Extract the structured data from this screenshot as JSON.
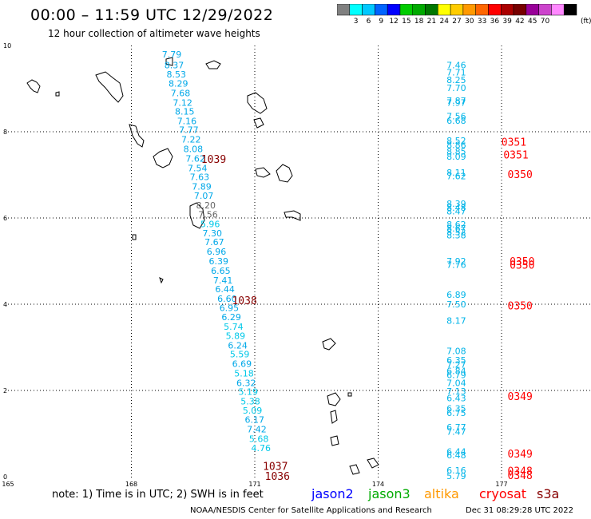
{
  "header": {
    "title": "00:00 – 11:59 UTC 12/29/2022",
    "subtitle": "12 hour collection of altimeter wave heights"
  },
  "legend": {
    "colors": [
      "#808080",
      "#00ffff",
      "#00c8ff",
      "#0064ff",
      "#0000ff",
      "#00cc00",
      "#00aa00",
      "#007700",
      "#ffff00",
      "#ffcc00",
      "#ff9900",
      "#ff6600",
      "#ff0000",
      "#aa0000",
      "#770000",
      "#990099",
      "#cc44cc",
      "#ff88ff",
      "#000000"
    ],
    "labels": [
      "3",
      "6",
      "9",
      "12",
      "15",
      "18",
      "21",
      "24",
      "27",
      "30",
      "33",
      "36",
      "39",
      "42",
      "45",
      "70"
    ],
    "unit": "(ft)"
  },
  "map": {
    "lon_ticks": [
      "165",
      "168",
      "171",
      "174",
      "177"
    ],
    "lat_ticks": [
      "0",
      "2",
      "4",
      "6",
      "8",
      "10"
    ],
    "track_west": [
      {
        "v": "7.79",
        "lat": 9.8
      },
      {
        "v": "8.37",
        "lat": 9.55
      },
      {
        "v": "8.53",
        "lat": 9.33
      },
      {
        "v": "8.29",
        "lat": 9.12
      },
      {
        "v": "7.68",
        "lat": 8.9
      },
      {
        "v": "7.12",
        "lat": 8.68
      },
      {
        "v": "8.15",
        "lat": 8.47
      },
      {
        "v": "7.16",
        "lat": 8.25
      },
      {
        "v": "7.77",
        "lat": 8.05
      },
      {
        "v": "7.22",
        "lat": 7.82
      },
      {
        "v": "8.08",
        "lat": 7.6
      },
      {
        "v": "7.62",
        "lat": 7.38
      },
      {
        "v": "7.54",
        "lat": 7.16
      },
      {
        "v": "7.63",
        "lat": 6.95
      },
      {
        "v": "7.89",
        "lat": 6.73
      },
      {
        "v": "7.07",
        "lat": 6.52
      },
      {
        "v": "8.20",
        "lat": 6.3
      },
      {
        "v": "7.56",
        "lat": 6.08
      },
      {
        "v": "5.96",
        "lat": 5.86
      },
      {
        "v": "7.30",
        "lat": 5.65
      },
      {
        "v": "7.67",
        "lat": 5.44
      },
      {
        "v": "6.96",
        "lat": 5.22
      },
      {
        "v": "6.39",
        "lat": 5.0
      },
      {
        "v": "6.65",
        "lat": 4.78
      },
      {
        "v": "7.41",
        "lat": 4.56
      },
      {
        "v": "6.44",
        "lat": 4.35
      },
      {
        "v": "6.60",
        "lat": 4.13
      },
      {
        "v": "6.95",
        "lat": 3.92
      },
      {
        "v": "6.29",
        "lat": 3.7
      },
      {
        "v": "5.74",
        "lat": 3.48
      },
      {
        "v": "5.89",
        "lat": 3.27
      },
      {
        "v": "6.24",
        "lat": 3.05
      },
      {
        "v": "5.59",
        "lat": 2.84
      },
      {
        "v": "6.69",
        "lat": 2.62
      },
      {
        "v": "5.18",
        "lat": 2.4
      },
      {
        "v": "6.32",
        "lat": 2.18
      },
      {
        "v": "5.19",
        "lat": 1.97
      },
      {
        "v": "5.38",
        "lat": 1.75
      },
      {
        "v": "5.09",
        "lat": 1.54
      },
      {
        "v": "6.17",
        "lat": 1.32
      },
      {
        "v": "7.42",
        "lat": 1.1
      },
      {
        "v": "5.68",
        "lat": 0.88
      },
      {
        "v": "4.76",
        "lat": 0.67
      }
    ],
    "track_east": [
      {
        "v": "7.46",
        "lat": 9.55
      },
      {
        "v": "7.71",
        "lat": 9.38
      },
      {
        "v": "8.25",
        "lat": 9.2
      },
      {
        "v": "7.70",
        "lat": 9.02
      },
      {
        "v": "7.87",
        "lat": 8.72
      },
      {
        "v": "7.97",
        "lat": 8.68
      },
      {
        "v": "7.56",
        "lat": 8.36
      },
      {
        "v": "6.68",
        "lat": 8.26
      },
      {
        "v": "8.52",
        "lat": 7.8
      },
      {
        "v": "8.86",
        "lat": 7.69
      },
      {
        "v": "8.85",
        "lat": 7.55
      },
      {
        "v": "8.09",
        "lat": 7.43
      },
      {
        "v": "8.11",
        "lat": 7.06
      },
      {
        "v": "7.62",
        "lat": 6.97
      },
      {
        "v": "8.39",
        "lat": 6.33
      },
      {
        "v": "8.48",
        "lat": 6.24
      },
      {
        "v": "8.47",
        "lat": 6.16
      },
      {
        "v": "8.62",
        "lat": 5.85
      },
      {
        "v": "8.67",
        "lat": 5.76
      },
      {
        "v": "8.52",
        "lat": 5.68
      },
      {
        "v": "8.38",
        "lat": 5.6
      },
      {
        "v": "7.92",
        "lat": 5.0
      },
      {
        "v": "7.76",
        "lat": 4.92
      },
      {
        "v": "6.89",
        "lat": 4.22
      },
      {
        "v": "7.50",
        "lat": 4.0
      },
      {
        "v": "8.17",
        "lat": 3.62
      },
      {
        "v": "7.08",
        "lat": 2.92
      },
      {
        "v": "6.35",
        "lat": 2.7
      },
      {
        "v": "7.27",
        "lat": 2.6
      },
      {
        "v": "6.84",
        "lat": 2.45
      },
      {
        "v": "6.79",
        "lat": 2.36
      },
      {
        "v": "7.04",
        "lat": 2.18
      },
      {
        "v": "7.13",
        "lat": 1.98
      },
      {
        "v": "6.43",
        "lat": 1.82
      },
      {
        "v": "6.35",
        "lat": 1.58
      },
      {
        "v": "6.75",
        "lat": 1.48
      },
      {
        "v": "6.77",
        "lat": 1.15
      },
      {
        "v": "7.47",
        "lat": 1.05
      },
      {
        "v": "6.44",
        "lat": 0.58
      },
      {
        "v": "6.48",
        "lat": 0.5
      },
      {
        "v": "6.16",
        "lat": 0.15
      },
      {
        "v": "5.79",
        "lat": 0.02
      }
    ],
    "times": [
      {
        "t": "1039",
        "lon": 170.0,
        "lat": 7.35,
        "color": "#880000"
      },
      {
        "t": "1038",
        "lon": 170.75,
        "lat": 4.07,
        "color": "#880000"
      },
      {
        "t": "1037",
        "lon": 171.5,
        "lat": 0.23,
        "color": "#880000"
      },
      {
        "t": "1036",
        "lon": 171.55,
        "lat": 0.0,
        "color": "#880000"
      },
      {
        "t": "0351",
        "lon": 177.3,
        "lat": 7.75,
        "color": "#ff0000"
      },
      {
        "t": "0351",
        "lon": 177.35,
        "lat": 7.45,
        "color": "#ff0000"
      },
      {
        "t": "0350",
        "lon": 177.45,
        "lat": 7.0,
        "color": "#ff0000"
      },
      {
        "t": "0350",
        "lon": 177.5,
        "lat": 4.98,
        "color": "#ff0000"
      },
      {
        "t": "0350",
        "lon": 177.5,
        "lat": 4.9,
        "color": "#ff0000"
      },
      {
        "t": "0350",
        "lon": 177.45,
        "lat": 3.95,
        "color": "#ff0000"
      },
      {
        "t": "0349",
        "lon": 177.45,
        "lat": 1.85,
        "color": "#ff0000"
      },
      {
        "t": "0349",
        "lon": 177.45,
        "lat": 0.52,
        "color": "#ff0000"
      },
      {
        "t": "0348",
        "lon": 177.45,
        "lat": 0.12,
        "color": "#ff0000"
      },
      {
        "t": "0348",
        "lon": 177.45,
        "lat": 0.02,
        "color": "#ff0000"
      }
    ]
  },
  "footer": {
    "note": "note: 1) Time is in UTC; 2) SWH is in feet",
    "missions": [
      {
        "name": "jason2",
        "color": "#0000ff"
      },
      {
        "name": "jason3",
        "color": "#00aa00"
      },
      {
        "name": "altika",
        "color": "#ff9900"
      },
      {
        "name": "cryosat",
        "color": "#ff0000"
      },
      {
        "name": "s3a",
        "color": "#880000"
      }
    ],
    "credit": "NOAA/NESDIS Center for Satellite Applications and Research",
    "stamp": "Dec 31 08:29:28 UTC 2022"
  }
}
